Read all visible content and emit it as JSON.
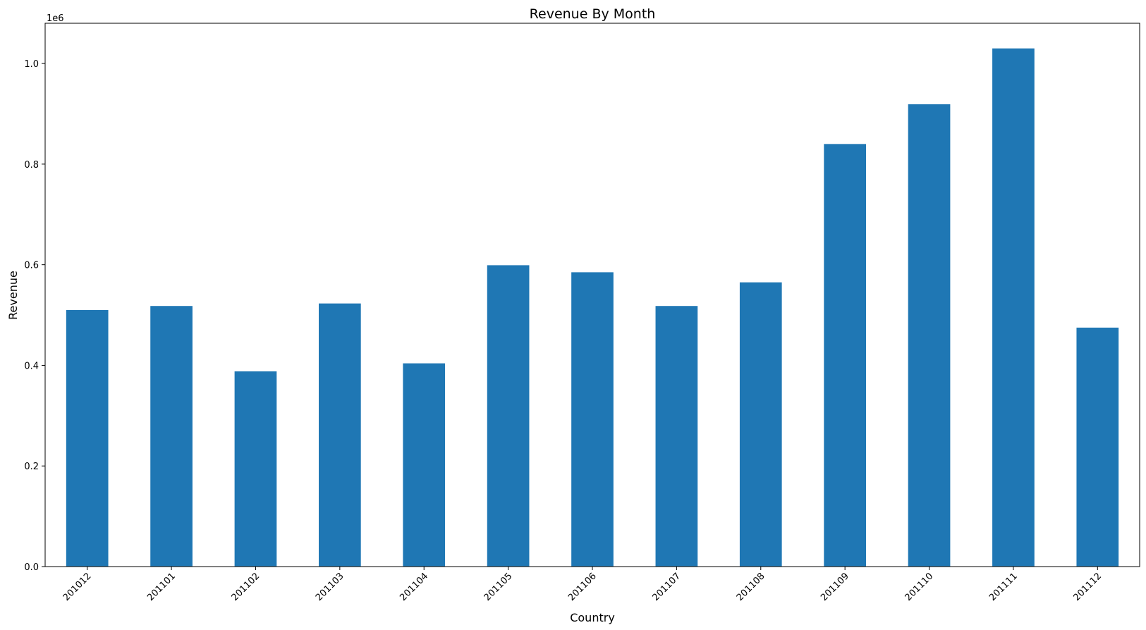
{
  "chart_data": {
    "type": "bar",
    "title": "Revenue By Month",
    "xlabel": "Country",
    "ylabel": "Revenue",
    "offset_label": "1e6",
    "categories": [
      "201012",
      "201101",
      "201102",
      "201103",
      "201104",
      "201105",
      "201106",
      "201107",
      "201108",
      "201109",
      "201110",
      "201111",
      "201112"
    ],
    "values": [
      510000,
      518000,
      388000,
      523000,
      404000,
      599000,
      585000,
      518000,
      565000,
      840000,
      919000,
      1030000,
      475000
    ],
    "ylim": [
      0,
      1080000
    ],
    "yticks": [
      0,
      200000,
      400000,
      600000,
      800000,
      1000000
    ],
    "ytick_labels": [
      "0.0",
      "0.2",
      "0.4",
      "0.6",
      "0.8",
      "1.0"
    ],
    "bar_color": "#1f77b4",
    "grid": false,
    "legend": "none"
  }
}
